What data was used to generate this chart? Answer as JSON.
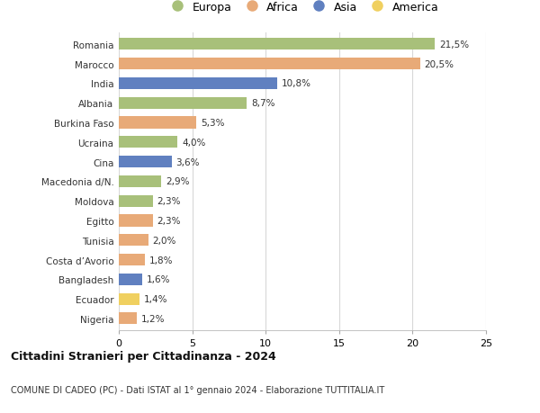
{
  "countries": [
    "Romania",
    "Marocco",
    "India",
    "Albania",
    "Burkina Faso",
    "Ucraina",
    "Cina",
    "Macedonia d/N.",
    "Moldova",
    "Egitto",
    "Tunisia",
    "Costa d’Avorio",
    "Bangladesh",
    "Ecuador",
    "Nigeria"
  ],
  "values": [
    21.5,
    20.5,
    10.8,
    8.7,
    5.3,
    4.0,
    3.6,
    2.9,
    2.3,
    2.3,
    2.0,
    1.8,
    1.6,
    1.4,
    1.2
  ],
  "labels": [
    "21,5%",
    "20,5%",
    "10,8%",
    "8,7%",
    "5,3%",
    "4,0%",
    "3,6%",
    "2,9%",
    "2,3%",
    "2,3%",
    "2,0%",
    "1,8%",
    "1,6%",
    "1,4%",
    "1,2%"
  ],
  "continents": [
    "Europa",
    "Africa",
    "Asia",
    "Europa",
    "Africa",
    "Europa",
    "Asia",
    "Europa",
    "Europa",
    "Africa",
    "Africa",
    "Africa",
    "Asia",
    "America",
    "Africa"
  ],
  "colors": {
    "Europa": "#a8c07a",
    "Africa": "#e8aa78",
    "Asia": "#6080c0",
    "America": "#f0d060"
  },
  "xlim": [
    0,
    25
  ],
  "xticks": [
    0,
    5,
    10,
    15,
    20,
    25
  ],
  "title": "Cittadini Stranieri per Cittadinanza - 2024",
  "subtitle": "COMUNE DI CADEO (PC) - Dati ISTAT al 1° gennaio 2024 - Elaborazione TUTTITALIA.IT",
  "background_color": "#ffffff",
  "grid_color": "#d8d8d8",
  "bar_height": 0.6
}
